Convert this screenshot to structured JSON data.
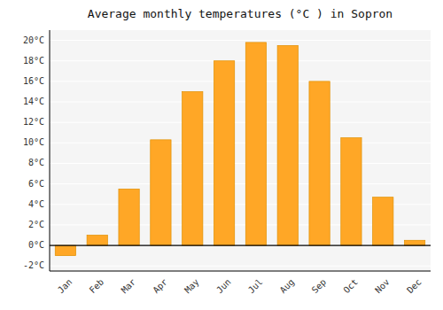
{
  "chart_data": {
    "type": "bar",
    "title": "Average monthly temperatures (°C ) in Sopron",
    "categories": [
      "Jan",
      "Feb",
      "Mar",
      "Apr",
      "May",
      "Jun",
      "Jul",
      "Aug",
      "Sep",
      "Oct",
      "Nov",
      "Dec"
    ],
    "values": [
      -1.0,
      1.0,
      5.5,
      10.3,
      15.0,
      18.0,
      19.8,
      19.5,
      16.0,
      10.5,
      4.7,
      0.5
    ],
    "color": "#FFA726",
    "ylim": [
      -2.5,
      21
    ],
    "yticks": [
      {
        "value": -2,
        "label": "-2°C"
      },
      {
        "value": 0,
        "label": "0°C"
      },
      {
        "value": 2,
        "label": "2°C"
      },
      {
        "value": 4,
        "label": "4°C"
      },
      {
        "value": 6,
        "label": "6°C"
      },
      {
        "value": 8,
        "label": "8°C"
      },
      {
        "value": 10,
        "label": "10°C"
      },
      {
        "value": 12,
        "label": "12°C"
      },
      {
        "value": 14,
        "label": "14°C"
      },
      {
        "value": 16,
        "label": "16°C"
      },
      {
        "value": 18,
        "label": "18°C"
      },
      {
        "value": 20,
        "label": "20°C"
      }
    ],
    "grid": true
  }
}
